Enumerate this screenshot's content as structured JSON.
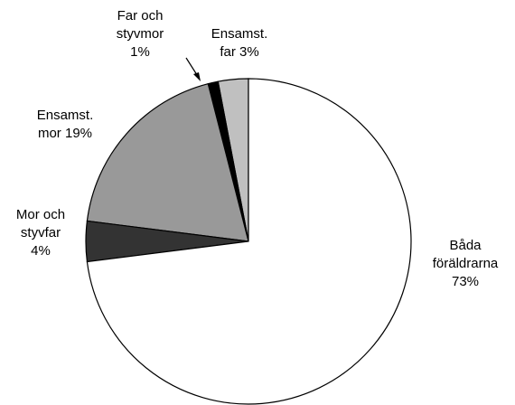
{
  "chart_data": {
    "type": "pie",
    "categories": [
      "Båda föräldrarna",
      "Mor och styvfar",
      "Ensamst. mor",
      "Far och styvmor",
      "Ensamst. far"
    ],
    "values": [
      73,
      4,
      19,
      1,
      3
    ],
    "value_labels": [
      "73%",
      "4%",
      "19%",
      "1%",
      "3%"
    ],
    "colors": [
      "#ffffff",
      "#333333",
      "#999999",
      "#000000",
      "#c0c0c0"
    ]
  }
}
